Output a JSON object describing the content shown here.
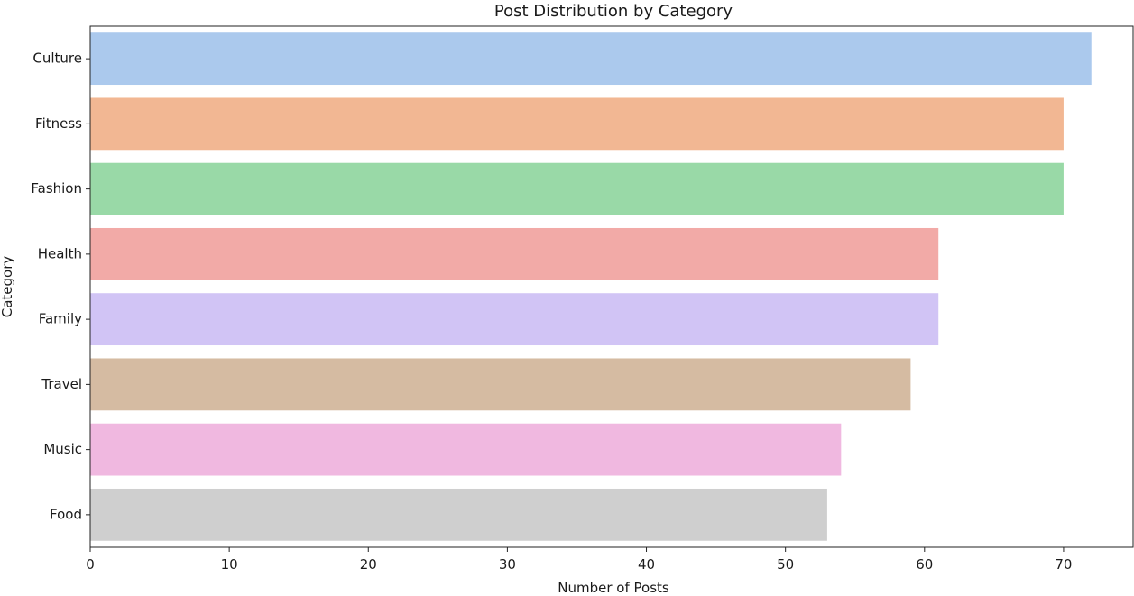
{
  "chart_data": {
    "type": "bar",
    "orientation": "horizontal",
    "title": "Post Distribution by Category",
    "xlabel": "Number of Posts",
    "ylabel": "Category",
    "xlim": [
      0,
      75
    ],
    "xticks": [
      0,
      10,
      20,
      30,
      40,
      50,
      60,
      70
    ],
    "grid": false,
    "categories": [
      "Culture",
      "Fitness",
      "Fashion",
      "Health",
      "Family",
      "Travel",
      "Music",
      "Food"
    ],
    "values": [
      72,
      70,
      70,
      61,
      61,
      59,
      54,
      53
    ],
    "colors": [
      "#abc9ed",
      "#f2b793",
      "#99d9a7",
      "#f2aaa7",
      "#d1c4f5",
      "#d5bba2",
      "#f0b8e0",
      "#cfcfcf"
    ]
  }
}
